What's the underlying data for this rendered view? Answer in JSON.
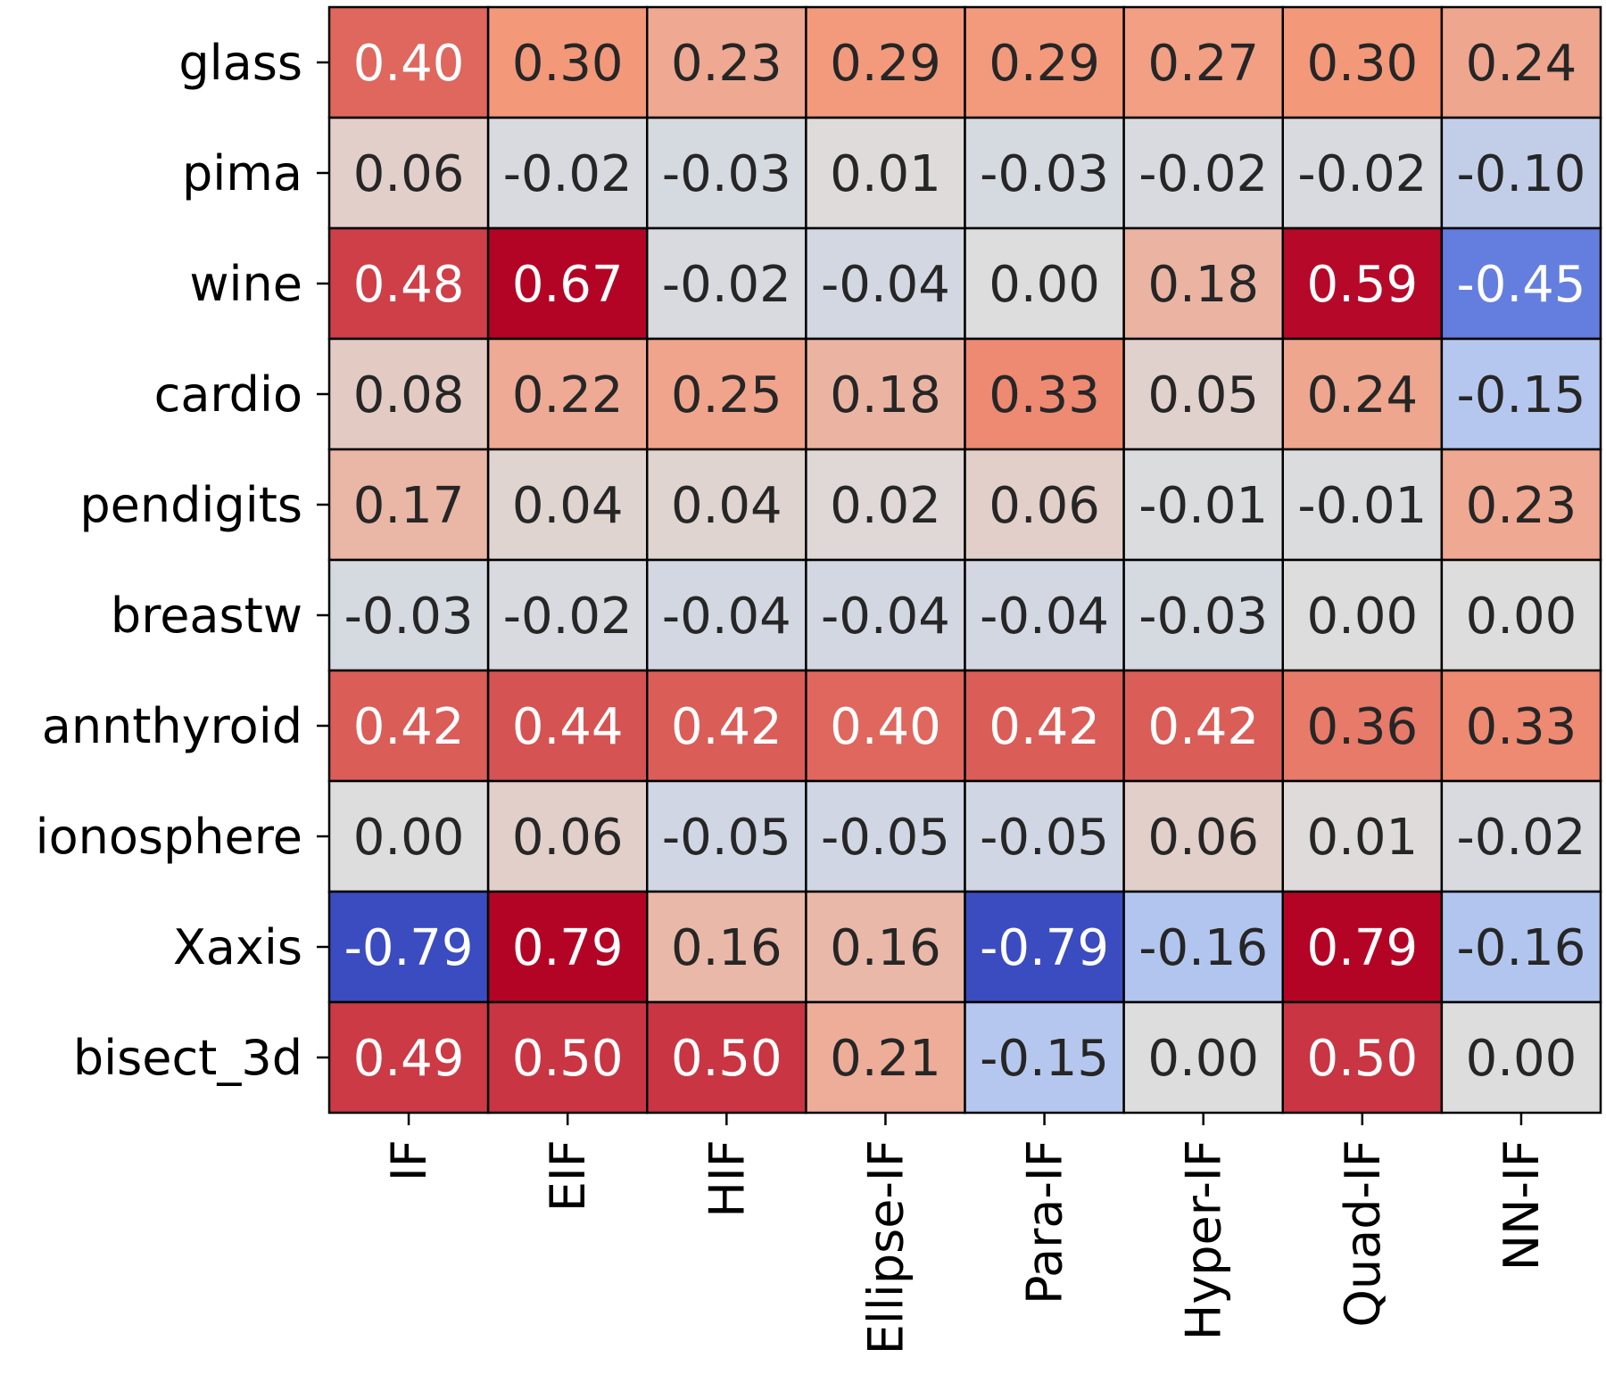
{
  "chart_data": {
    "type": "heatmap",
    "title": "",
    "xlabel": "",
    "ylabel": "",
    "x_categories": [
      "IF",
      "EIF",
      "HIF",
      "Ellipse-IF",
      "Para-IF",
      "Hyper-IF",
      "Quad-IF",
      "NN-IF"
    ],
    "y_categories": [
      "glass",
      "pima",
      "wine",
      "cardio",
      "pendigits",
      "breastw",
      "annthyroid",
      "ionosphere",
      "Xaxis",
      "bisect_3d"
    ],
    "values": [
      [
        0.4,
        0.3,
        0.23,
        0.29,
        0.29,
        0.27,
        0.3,
        0.24
      ],
      [
        0.06,
        -0.02,
        -0.03,
        0.01,
        -0.03,
        -0.02,
        -0.02,
        -0.1
      ],
      [
        0.48,
        0.67,
        -0.02,
        -0.04,
        -0.0,
        0.18,
        0.59,
        -0.45
      ],
      [
        0.08,
        0.22,
        0.25,
        0.18,
        0.33,
        0.05,
        0.24,
        -0.15
      ],
      [
        0.17,
        0.04,
        0.04,
        0.02,
        0.06,
        -0.01,
        -0.01,
        0.23
      ],
      [
        -0.03,
        -0.02,
        -0.04,
        -0.04,
        -0.04,
        -0.03,
        0.0,
        0.0
      ],
      [
        0.42,
        0.44,
        0.42,
        0.4,
        0.42,
        0.42,
        0.36,
        0.33
      ],
      [
        -0.0,
        0.06,
        -0.05,
        -0.05,
        -0.05,
        0.06,
        0.01,
        -0.02
      ],
      [
        -0.79,
        0.79,
        0.16,
        0.16,
        -0.79,
        -0.16,
        0.79,
        -0.16
      ],
      [
        0.49,
        0.5,
        0.5,
        0.21,
        -0.15,
        0.0,
        0.5,
        -0.0
      ]
    ],
    "value_format_decimals": 2,
    "colormap": "coolwarm",
    "color_range": [
      -0.6,
      0.6
    ],
    "colorbar": false,
    "grid": true
  }
}
